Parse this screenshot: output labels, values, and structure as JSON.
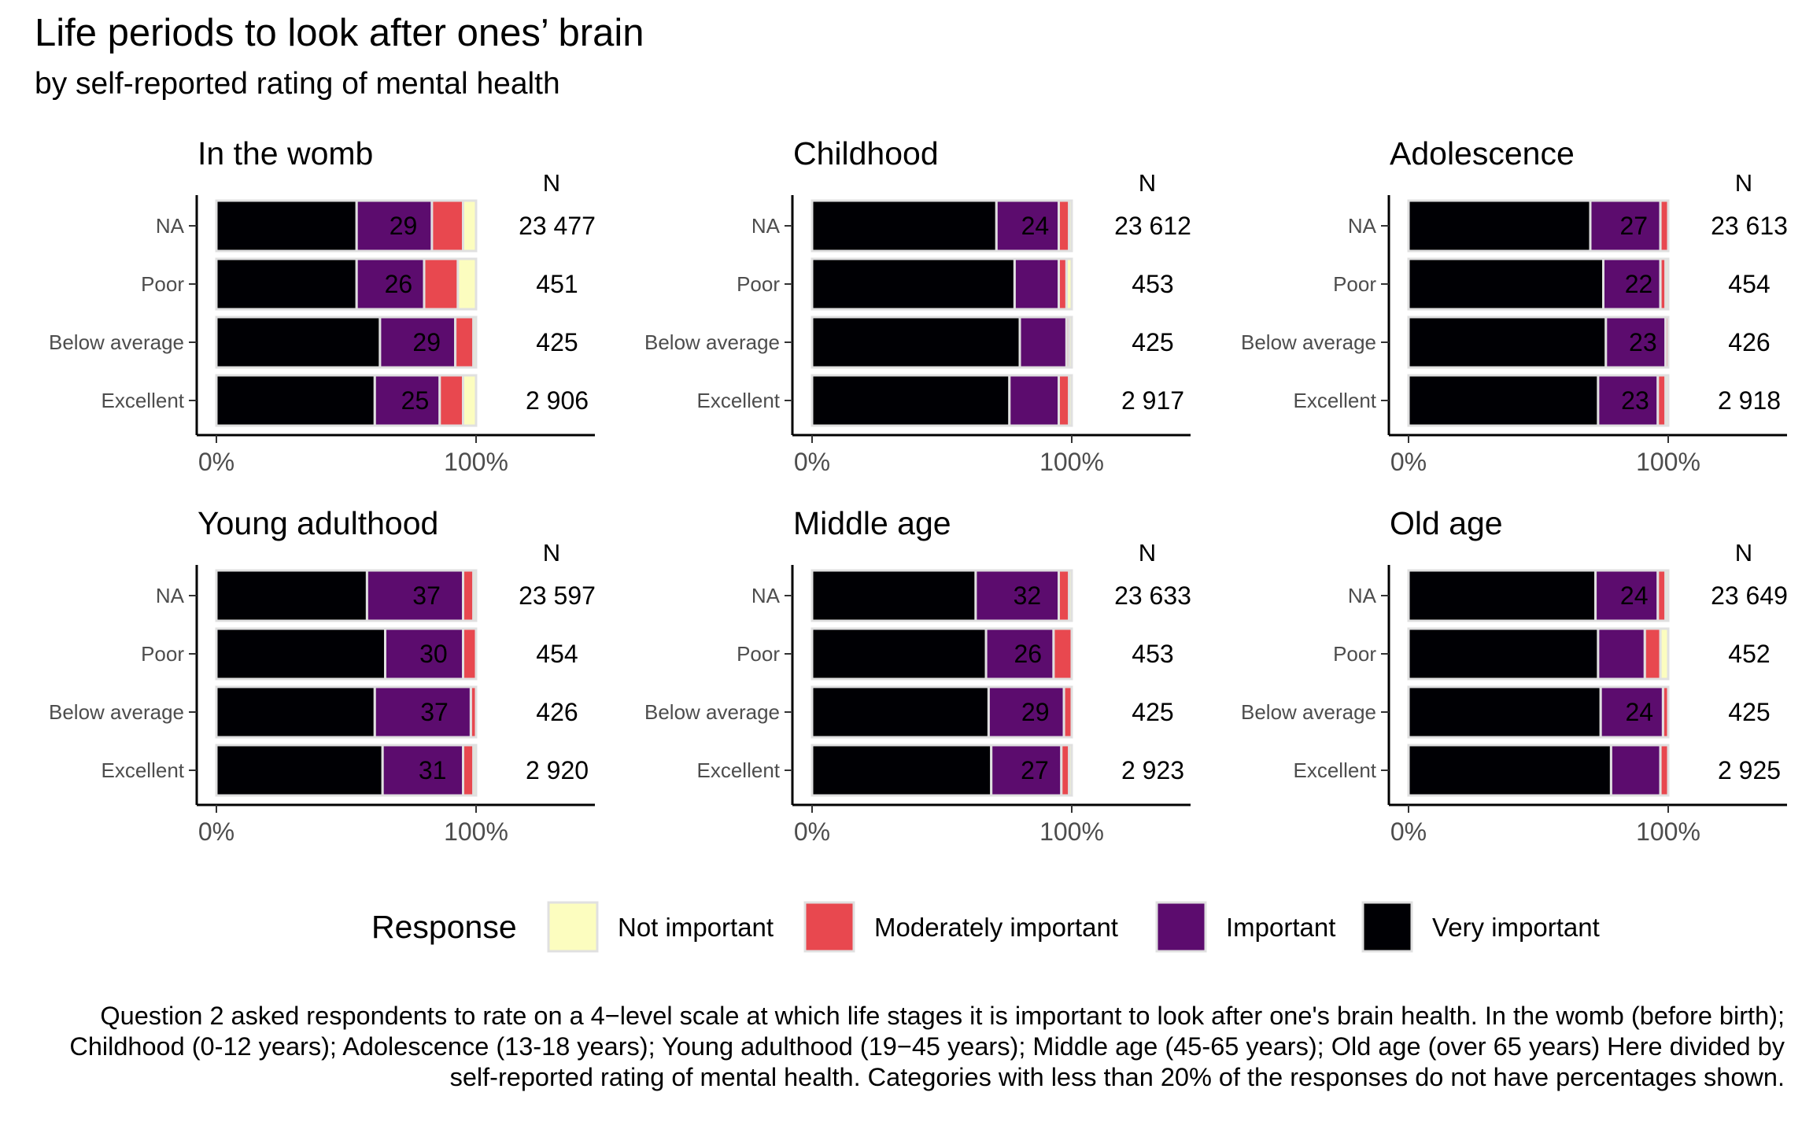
{
  "title": "Life periods to look after ones’ brain",
  "subtitle": "by self-reported rating of mental health",
  "caption": "Question 2 asked respondents to rate on a 4−level scale at which life stages it is important to look after one's brain health. In the womb (before birth); Childhood (0-12 years); Adolescence (13-18 years); Young adulthood (19−45 years); Middle age (45-65 years); Old age (over 65 years) Here divided by self-reported rating of mental health. Categories with less than 20% of the responses do not have percentages shown.",
  "colors": {
    "Not important": "#FCFDBF",
    "Moderately important": "#E8484F",
    "Important": "#5C0C6E",
    "Very important": "#000004",
    "border": "#e0e0e0"
  },
  "chart_data": {
    "type": "bar",
    "orientation": "horizontal",
    "stacked": true,
    "categories": [
      "NA",
      "Poor",
      "Below average",
      "Excellent"
    ],
    "xticks": [
      "0%",
      "100%"
    ],
    "xlim": [
      0,
      1
    ],
    "n_header": "N",
    "legend": {
      "title": "Response",
      "position": "bottom",
      "entries": [
        "Not important",
        "Moderately important",
        "Important",
        "Very important"
      ]
    },
    "panels": [
      {
        "title": "In the womb",
        "rows": [
          {
            "category": "NA",
            "n": "23 477",
            "values": {
              "Very important": 54,
              "Important": 29,
              "Moderately important": 12,
              "Not important": 5
            },
            "label": "29"
          },
          {
            "category": "Poor",
            "n": "451",
            "values": {
              "Very important": 54,
              "Important": 26,
              "Moderately important": 13,
              "Not important": 7
            },
            "label": "26"
          },
          {
            "category": "Below average",
            "n": "425",
            "values": {
              "Very important": 63,
              "Important": 29,
              "Moderately important": 7,
              "Not important": 1
            },
            "label": "29"
          },
          {
            "category": "Excellent",
            "n": "2 906",
            "values": {
              "Very important": 61,
              "Important": 25,
              "Moderately important": 9,
              "Not important": 5
            },
            "label": "25"
          }
        ]
      },
      {
        "title": "Childhood",
        "rows": [
          {
            "category": "NA",
            "n": "23 612",
            "values": {
              "Very important": 71,
              "Important": 24,
              "Moderately important": 4,
              "Not important": 1
            },
            "label": "24"
          },
          {
            "category": "Poor",
            "n": "453",
            "values": {
              "Very important": 78,
              "Important": 17,
              "Moderately important": 3,
              "Not important": 2
            },
            "label": ""
          },
          {
            "category": "Below average",
            "n": "425",
            "values": {
              "Very important": 80,
              "Important": 18,
              "Moderately important": 1,
              "Not important": 1
            },
            "label": ""
          },
          {
            "category": "Excellent",
            "n": "2 917",
            "values": {
              "Very important": 76,
              "Important": 19,
              "Moderately important": 4,
              "Not important": 1
            },
            "label": ""
          }
        ]
      },
      {
        "title": "Adolescence",
        "rows": [
          {
            "category": "NA",
            "n": "23 613",
            "values": {
              "Very important": 70,
              "Important": 27,
              "Moderately important": 3,
              "Not important": 0
            },
            "label": "27"
          },
          {
            "category": "Poor",
            "n": "454",
            "values": {
              "Very important": 75,
              "Important": 22,
              "Moderately important": 2,
              "Not important": 1
            },
            "label": "22"
          },
          {
            "category": "Below average",
            "n": "426",
            "values": {
              "Very important": 76,
              "Important": 23,
              "Moderately important": 1,
              "Not important": 0
            },
            "label": "23"
          },
          {
            "category": "Excellent",
            "n": "2 918",
            "values": {
              "Very important": 73,
              "Important": 23,
              "Moderately important": 3,
              "Not important": 1
            },
            "label": "23"
          }
        ]
      },
      {
        "title": "Young adulthood",
        "rows": [
          {
            "category": "NA",
            "n": "23 597",
            "values": {
              "Very important": 58,
              "Important": 37,
              "Moderately important": 4,
              "Not important": 1
            },
            "label": "37"
          },
          {
            "category": "Poor",
            "n": "454",
            "values": {
              "Very important": 65,
              "Important": 30,
              "Moderately important": 5,
              "Not important": 0
            },
            "label": "30"
          },
          {
            "category": "Below average",
            "n": "426",
            "values": {
              "Very important": 61,
              "Important": 37,
              "Moderately important": 2,
              "Not important": 0
            },
            "label": "37"
          },
          {
            "category": "Excellent",
            "n": "2 920",
            "values": {
              "Very important": 64,
              "Important": 31,
              "Moderately important": 4,
              "Not important": 1
            },
            "label": "31"
          }
        ]
      },
      {
        "title": "Middle age",
        "rows": [
          {
            "category": "NA",
            "n": "23 633",
            "values": {
              "Very important": 63,
              "Important": 32,
              "Moderately important": 4,
              "Not important": 1
            },
            "label": "32"
          },
          {
            "category": "Poor",
            "n": "453",
            "values": {
              "Very important": 67,
              "Important": 26,
              "Moderately important": 7,
              "Not important": 0
            },
            "label": "26"
          },
          {
            "category": "Below average",
            "n": "425",
            "values": {
              "Very important": 68,
              "Important": 29,
              "Moderately important": 3,
              "Not important": 0
            },
            "label": "29"
          },
          {
            "category": "Excellent",
            "n": "2 923",
            "values": {
              "Very important": 69,
              "Important": 27,
              "Moderately important": 3,
              "Not important": 1
            },
            "label": "27"
          }
        ]
      },
      {
        "title": "Old age",
        "rows": [
          {
            "category": "NA",
            "n": "23 649",
            "values": {
              "Very important": 72,
              "Important": 24,
              "Moderately important": 3,
              "Not important": 1
            },
            "label": "24"
          },
          {
            "category": "Poor",
            "n": "452",
            "values": {
              "Very important": 73,
              "Important": 18,
              "Moderately important": 6,
              "Not important": 3
            },
            "label": ""
          },
          {
            "category": "Below average",
            "n": "425",
            "values": {
              "Very important": 74,
              "Important": 24,
              "Moderately important": 2,
              "Not important": 0
            },
            "label": "24"
          },
          {
            "category": "Excellent",
            "n": "2 925",
            "values": {
              "Very important": 78,
              "Important": 19,
              "Moderately important": 3,
              "Not important": 0
            },
            "label": ""
          }
        ]
      }
    ]
  }
}
